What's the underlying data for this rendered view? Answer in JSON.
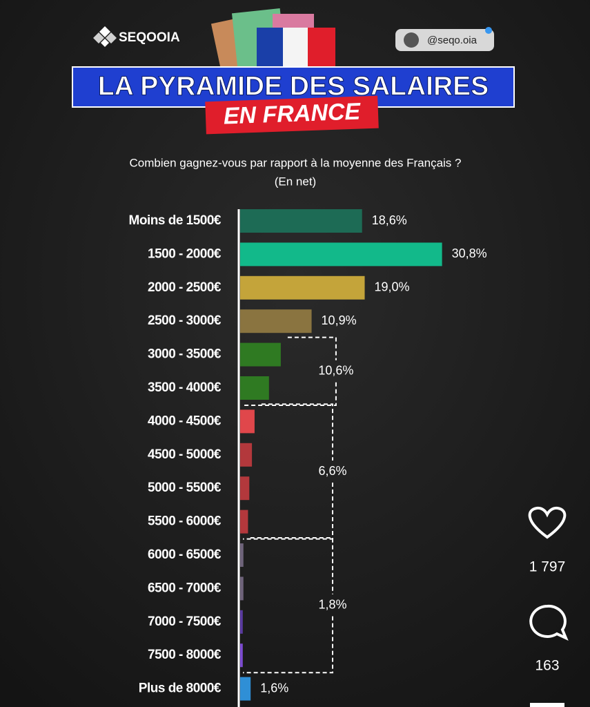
{
  "ui": {
    "brand": "SEQOOIA",
    "handle": "@seqo.oia",
    "likes": "1 797",
    "comments": "163"
  },
  "chart_data": {
    "type": "bar",
    "orientation": "horizontal",
    "title": "LA PYRAMIDE DES SALAIRES",
    "title_highlight": "EN FRANCE",
    "subtitle": "Combien gagnez-vous par rapport à la moyenne des Français ?",
    "subtitle_note": "(En net)",
    "categories": [
      "Moins de 1500€",
      "1500 - 2000€",
      "2000 - 2500€",
      "2500 - 3000€",
      "3000 - 3500€",
      "3500 - 4000€",
      "4000 - 4500€",
      "4500 - 5000€",
      "5000 - 5500€",
      "5500 - 6000€",
      "6000 - 6500€",
      "6500 - 7000€",
      "7000 - 7500€",
      "7500 - 8000€",
      "Plus de 8000€"
    ],
    "values": [
      18.6,
      30.8,
      19.0,
      10.9,
      6.2,
      4.4,
      2.2,
      1.8,
      1.4,
      1.2,
      0.5,
      0.5,
      0.4,
      0.4,
      1.6
    ],
    "value_labels": [
      "18,6%",
      "30,8%",
      "19,0%",
      "10,9%",
      null,
      null,
      null,
      null,
      null,
      null,
      null,
      null,
      null,
      null,
      "1,6%"
    ],
    "colors": [
      "#1d6b55",
      "#12b98a",
      "#c4a43a",
      "#8a7440",
      "#2f7a22",
      "#2f7a22",
      "#e0474b",
      "#b3383c",
      "#b3383c",
      "#b3383c",
      "#6e637a",
      "#6e637a",
      "#5a3aa0",
      "#7b4ad0",
      "#2f8fd6"
    ],
    "groups": [
      {
        "value": 10.6,
        "label": "10,6%",
        "start": 4,
        "end": 5
      },
      {
        "value": 6.6,
        "label": "6,6%",
        "start": 6,
        "end": 9
      },
      {
        "value": 1.8,
        "label": "1,8%",
        "start": 10,
        "end": 13
      }
    ]
  }
}
